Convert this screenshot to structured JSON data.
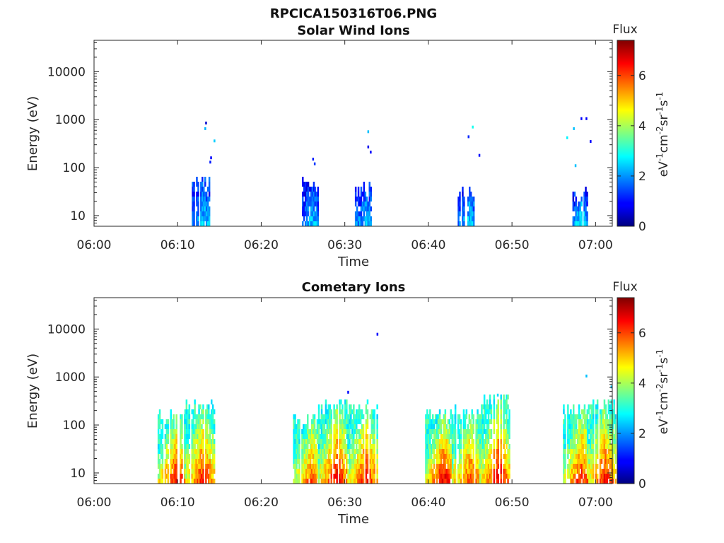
{
  "figure": {
    "title": "RPCICA150316T06.PNG"
  },
  "chart_data": [
    {
      "type": "heatmap",
      "title": "Solar Wind Ions",
      "xlabel": "Time",
      "ylabel": "Energy (eV)",
      "x_range": [
        "06:00",
        "07:02"
      ],
      "x_ticks": [
        "06:00",
        "06:10",
        "06:20",
        "06:30",
        "06:40",
        "06:50",
        "07:00"
      ],
      "y_scale": "log",
      "y_range": [
        6,
        45000
      ],
      "y_ticks": [
        "10",
        "100",
        "1000",
        "10000"
      ],
      "colorbar": {
        "label": "Flux",
        "unit_label": "eV-1cm-2sr-1s-1",
        "range": [
          0,
          7.4
        ],
        "ticks": [
          "0",
          "2",
          "4",
          "6"
        ],
        "colormap": "jet"
      },
      "clusters": [
        {
          "center": "06:13",
          "flux": [
            2.5,
            1.2
          ],
          "energy_range": [
            6,
            60
          ]
        },
        {
          "center": "06:26",
          "flux": [
            2.4,
            1.0
          ],
          "energy_range": [
            6,
            60
          ]
        },
        {
          "center": "06:32.5",
          "flux": [
            2.5,
            1.1
          ],
          "energy_range": [
            6,
            45
          ]
        },
        {
          "center": "06:44.8",
          "flux": [
            2.7,
            1.1
          ],
          "energy_range": [
            6,
            40
          ]
        },
        {
          "center": "06:58.2",
          "flux": [
            3.0,
            1.0
          ],
          "energy_range": [
            6,
            40
          ]
        }
      ],
      "sparse_points": [
        [
          "06:13.3",
          850,
          0.5
        ],
        [
          "06:13.2",
          650,
          2.2
        ],
        [
          "06:14.3",
          360,
          2.4
        ],
        [
          "06:13.9",
          160,
          0.8
        ],
        [
          "06:13.8",
          130,
          1.0
        ],
        [
          "06:26.1",
          150,
          1.0
        ],
        [
          "06:26.3",
          120,
          1.2
        ],
        [
          "06:32.7",
          560,
          2.3
        ],
        [
          "06:32.7",
          270,
          0.7
        ],
        [
          "06:33",
          210,
          0.8
        ],
        [
          "06:45.2",
          700,
          2.9
        ],
        [
          "06:44.7",
          440,
          1.1
        ],
        [
          "06:46",
          180,
          0.9
        ],
        [
          "06:58.2",
          1050,
          0.8
        ],
        [
          "06:58.8",
          1050,
          0.8
        ],
        [
          "06:57.3",
          650,
          2.3
        ],
        [
          "06:56.5",
          420,
          2.7
        ],
        [
          "06:59.3",
          350,
          0.8
        ],
        [
          "06:57.5",
          110,
          2.3
        ]
      ],
      "grid": false
    },
    {
      "type": "heatmap",
      "title": "Cometary Ions",
      "xlabel": "Time",
      "ylabel": "Energy (eV)",
      "x_range": [
        "06:00",
        "07:02"
      ],
      "x_ticks": [
        "06:00",
        "06:10",
        "06:20",
        "06:30",
        "06:40",
        "06:50",
        "07:00"
      ],
      "y_scale": "log",
      "y_range": [
        6,
        45000
      ],
      "y_ticks": [
        "10",
        "100",
        "1000",
        "10000"
      ],
      "colorbar": {
        "label": "Flux",
        "unit_label": "eV-1cm-2sr-1s-1",
        "range": [
          0,
          7.4
        ],
        "ticks": [
          "0",
          "2",
          "4",
          "6"
        ],
        "colormap": "jet"
      },
      "clusters": [
        {
          "center": "06:09.8",
          "flux": [
            6.8,
            3.0
          ],
          "energy_range": [
            6,
            180
          ]
        },
        {
          "center": "06:13",
          "flux": [
            6.5,
            3.0
          ],
          "energy_range": [
            6,
            280
          ]
        },
        {
          "center": "06:26",
          "flux": [
            6.0,
            3.0
          ],
          "energy_range": [
            6,
            150
          ]
        },
        {
          "center": "06:29",
          "flux": [
            6.8,
            3.0
          ],
          "energy_range": [
            6,
            350
          ]
        },
        {
          "center": "06:32.5",
          "flux": [
            6.5,
            3.0
          ],
          "energy_range": [
            6,
            300
          ]
        },
        {
          "center": "06:41.8",
          "flux": [
            6.8,
            3.0
          ],
          "energy_range": [
            6,
            200
          ]
        },
        {
          "center": "06:45",
          "flux": [
            6.2,
            3.0
          ],
          "energy_range": [
            6,
            200
          ]
        },
        {
          "center": "06:48.3",
          "flux": [
            6.8,
            3.0
          ],
          "energy_range": [
            6,
            400
          ]
        },
        {
          "center": "06:58.3",
          "flux": [
            6.5,
            3.0
          ],
          "energy_range": [
            6,
            250
          ]
        },
        {
          "center": "07:01",
          "flux": [
            6.5,
            3.0
          ],
          "energy_range": [
            6,
            300
          ]
        }
      ],
      "sparse_points": [
        [
          "06:33.8",
          7800,
          0.8
        ],
        [
          "06:58.8",
          1050,
          2.3
        ],
        [
          "07:01.8",
          620,
          2.3
        ],
        [
          "06:30.3",
          480,
          0.9
        ],
        [
          "06:48.2",
          420,
          2.5
        ]
      ],
      "grid": false
    }
  ]
}
